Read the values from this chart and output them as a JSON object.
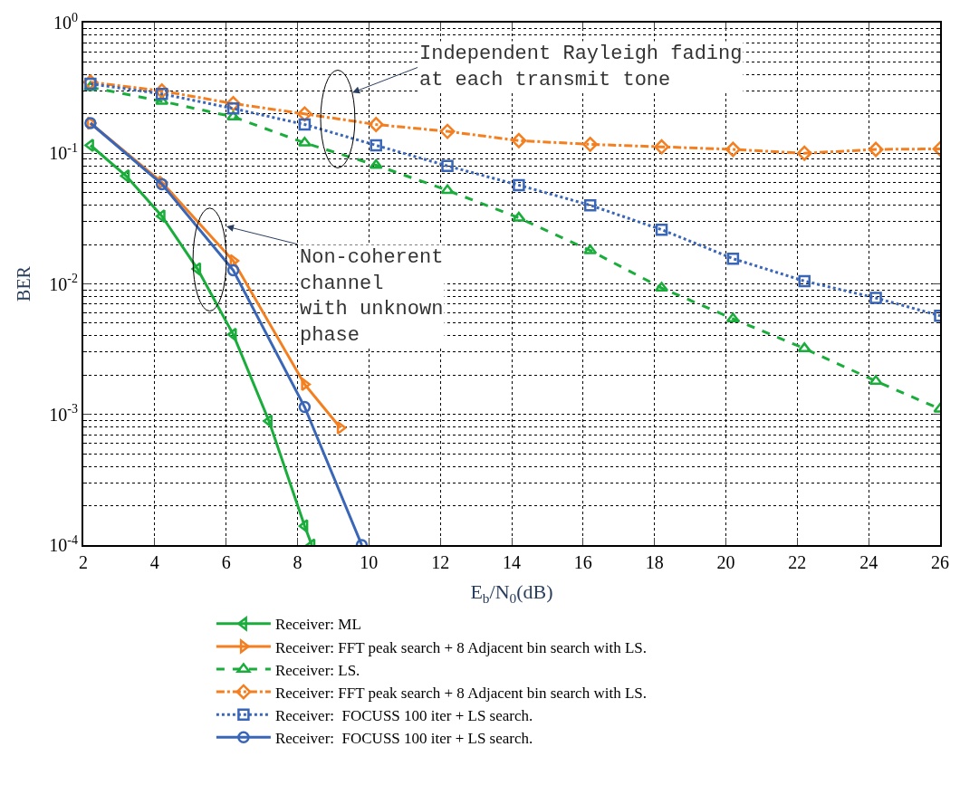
{
  "chart_data": {
    "type": "line",
    "xlabel": "E$_{b}$/N$_{0}$(dB)",
    "ylabel": "BER",
    "log": "y",
    "grid": true,
    "legend": "bottom",
    "xlim": [
      2,
      26
    ],
    "xticks": [
      2,
      4,
      6,
      8,
      10,
      12,
      14,
      16,
      18,
      20,
      22,
      24,
      26
    ],
    "ylim": [
      0.0001,
      1
    ],
    "yticks": [
      {
        "value": 0.0001,
        "label": "10$^{-4}$"
      },
      {
        "value": 0.001,
        "label": "10$^{-3}$"
      },
      {
        "value": 0.01,
        "label": "10$^{-2}$"
      },
      {
        "value": 0.1,
        "label": "10$^{-1}$"
      },
      {
        "value": 1,
        "label": "10$^{0}$"
      }
    ],
    "series": [
      {
        "name": "Receiver: ML",
        "color": "#1aad3c",
        "marker": "triangle-left",
        "line_style": "solid",
        "x": [
          2.2,
          3.2,
          4.2,
          5.2,
          6.2,
          7.2,
          8.2,
          8.4
        ],
        "values": [
          0.115,
          0.067,
          0.033,
          0.013,
          0.0041,
          0.00089,
          0.00014,
          0.0001
        ]
      },
      {
        "name": "Receiver: FFT peak search + 8 Adjacent bin search with LS.",
        "color": "#f47f20",
        "marker": "triangle-right",
        "line_style": "solid",
        "x": [
          2.2,
          4.2,
          6.2,
          8.2,
          9.2
        ],
        "values": [
          0.17,
          0.06,
          0.015,
          0.0017,
          0.00079
        ]
      },
      {
        "name": "Receiver: LS.",
        "color": "#1aad3c",
        "marker": "triangle-up",
        "line_style": "dashed",
        "x": [
          2.2,
          4.2,
          6.2,
          8.2,
          10.2,
          12.2,
          14.2,
          16.2,
          18.2,
          20.2,
          22.2,
          24.2,
          26
        ],
        "values": [
          0.32,
          0.25,
          0.19,
          0.12,
          0.081,
          0.052,
          0.032,
          0.018,
          0.0093,
          0.0054,
          0.0032,
          0.0018,
          0.0011
        ]
      },
      {
        "name": "Receiver: FFT peak search + 8 Adjacent bin search with LS.",
        "color": "#f47f20",
        "marker": "diamond",
        "line_style": "dashdot",
        "x": [
          2.2,
          4.2,
          6.2,
          8.2,
          10.2,
          12.2,
          14.2,
          16.2,
          18.2,
          20.2,
          22.2,
          24.2,
          26
        ],
        "values": [
          0.35,
          0.3,
          0.24,
          0.2,
          0.166,
          0.147,
          0.125,
          0.117,
          0.112,
          0.107,
          0.1,
          0.107,
          0.108
        ]
      },
      {
        "name": "Receiver:  FOCUSS 100 iter + LS search.",
        "color": "#3a66b8",
        "marker": "square",
        "line_style": "dotted",
        "x": [
          2.2,
          4.2,
          6.2,
          8.2,
          10.2,
          12.2,
          14.2,
          16.2,
          18.2,
          20.2,
          22.2,
          24.2,
          26
        ],
        "values": [
          0.34,
          0.285,
          0.22,
          0.166,
          0.115,
          0.08,
          0.057,
          0.04,
          0.026,
          0.0156,
          0.0105,
          0.0078,
          0.0057
        ]
      },
      {
        "name": "Receiver:  FOCUSS 100 iter + LS search.",
        "color": "#3a66b8",
        "marker": "circle",
        "line_style": "solid",
        "x": [
          2.2,
          4.2,
          6.2,
          8.2,
          9.8
        ],
        "values": [
          0.17,
          0.058,
          0.0127,
          0.00114,
          0.0001
        ]
      }
    ],
    "annotations": [
      "Independent Rayleigh fading\nat each transmit tone",
      "Non-coherent\nchannel\nwith unknown\nphase"
    ]
  }
}
